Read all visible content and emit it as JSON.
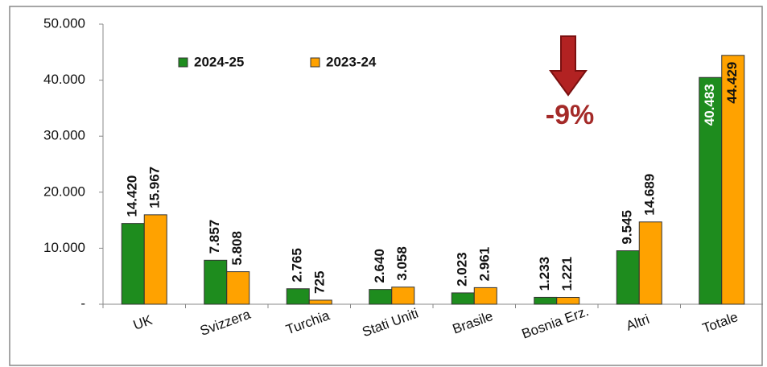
{
  "chart_data": {
    "type": "bar",
    "categories": [
      "UK",
      "Svizzera",
      "Turchia",
      "Stati Uniti",
      "Brasile",
      "Bosnia Erz.",
      "Altri",
      "Totale"
    ],
    "series": [
      {
        "name": "2024-25",
        "color": "#1e8c1e",
        "values": [
          14420,
          7857,
          2765,
          2640,
          2023,
          1233,
          9545,
          40483
        ],
        "value_labels": [
          "14.420",
          "7.857",
          "2.765",
          "2.640",
          "2.023",
          "1.233",
          "9.545",
          "40.483"
        ]
      },
      {
        "name": "2023-24",
        "color": "#ffa200",
        "values": [
          15967,
          5808,
          725,
          3058,
          2961,
          1221,
          14689,
          44429
        ],
        "value_labels": [
          "15.967",
          "5.808",
          "725",
          "3.058",
          "2.961",
          "1.221",
          "14.689",
          "44.429"
        ]
      }
    ],
    "ylim": [
      0,
      50000
    ],
    "yticks": [
      {
        "value": 0,
        "label": "-"
      },
      {
        "value": 10000,
        "label": "10.000"
      },
      {
        "value": 20000,
        "label": "20.000"
      },
      {
        "value": 30000,
        "label": "30.000"
      },
      {
        "value": 40000,
        "label": "40.000"
      },
      {
        "value": 50000,
        "label": "50.000"
      }
    ],
    "annotation": "-9%",
    "grid": false
  }
}
